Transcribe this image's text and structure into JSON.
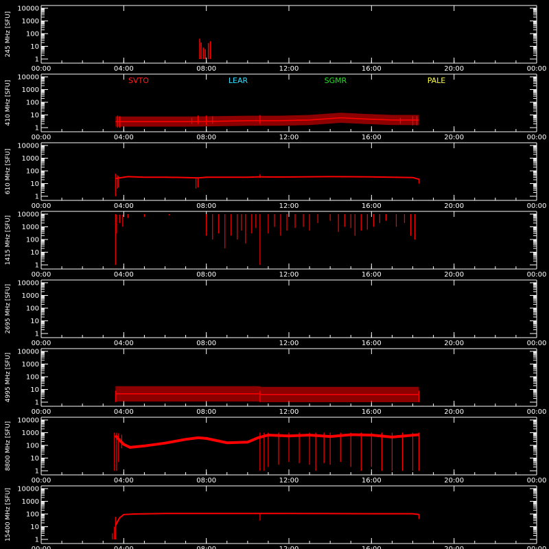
{
  "chart_data": {
    "type": "scatter",
    "x_ticks": [
      "00:00",
      "04:00",
      "08:00",
      "12:00",
      "16:00",
      "20:00",
      "00:00"
    ],
    "x_range_hours": [
      0,
      24
    ],
    "y_ticks": [
      "10000",
      "1000",
      "100",
      "10",
      "1"
    ],
    "y_scale": "log",
    "y_range": [
      1,
      10000
    ],
    "grid": false,
    "legend": [
      "SVTO",
      "LEAR",
      "SGMR",
      "PALE"
    ],
    "legend_colors": [
      "#ff2020",
      "#30e0ff",
      "#20e020",
      "#ffff40"
    ],
    "legend_panel": 1,
    "series_color": "#ff0000",
    "frame_color": "#ffffff",
    "background": "#000000",
    "panels": [
      {
        "ylabel": "245 MHz [SFU]",
        "features": [
          {
            "kind": "bursts",
            "x": [
              7.68,
              7.75,
              7.85,
              7.95,
              8.1,
              8.2
            ],
            "y": [
              40,
              20,
              8,
              6,
              18,
              25
            ],
            "floor": 1
          }
        ]
      },
      {
        "ylabel": "410 MHz [SFU]",
        "features": [
          {
            "kind": "band",
            "x": [
              3.6,
              4.5,
              6.0,
              7.3,
              8.5,
              10.0,
              11.5,
              13.0,
              14.5,
              15.5,
              17.0,
              18.3
            ],
            "y": [
              3,
              3,
              3,
              3,
              3.2,
              3.5,
              3.5,
              4,
              6,
              5,
              4,
              4
            ],
            "spread": 2.5
          },
          {
            "kind": "spikes",
            "x": [
              3.7,
              3.8,
              7.3,
              7.6,
              8.0,
              8.3,
              10.6,
              17.4,
              18.0,
              18.2
            ],
            "top": [
              9,
              8,
              6,
              9,
              9,
              8,
              10,
              6,
              8,
              8
            ],
            "bottom": [
              1,
              1,
              2,
              2,
              1.5,
              2,
              2,
              2,
              1.5,
              1.5
            ]
          }
        ]
      },
      {
        "ylabel": "610 MHz [SFU]",
        "features": [
          {
            "kind": "line",
            "x": [
              3.6,
              3.9,
              4.2,
              5.0,
              6.0,
              7.0,
              7.6,
              8.0,
              9.0,
              10.0,
              10.5,
              11.0,
              12.0,
              14.0,
              16.0,
              17.0,
              18.0,
              18.3
            ],
            "y": [
              25,
              30,
              35,
              32,
              32,
              30,
              28,
              32,
              32,
              32,
              34,
              33,
              33,
              35,
              34,
              32,
              30,
              22
            ]
          },
          {
            "kind": "spikes",
            "x": [
              3.6,
              3.7,
              3.75,
              7.5,
              7.6,
              10.6,
              18.3
            ],
            "top": [
              60,
              45,
              40,
              25,
              25,
              55,
              25
            ],
            "bottom": [
              1,
              4,
              5,
              4,
              5,
              28,
              10
            ]
          }
        ]
      },
      {
        "ylabel": "1415 MHz [SFU]",
        "features": [
          {
            "kind": "spikes",
            "x": [
              3.6,
              3.65,
              3.8,
              3.95,
              4.2,
              5.0,
              6.2,
              8.0,
              8.3,
              8.6,
              8.9,
              9.2,
              9.5,
              9.7,
              9.9,
              10.2,
              10.4,
              10.6,
              11.0,
              11.3,
              11.6,
              11.9,
              12.3,
              12.7,
              13.0,
              13.4,
              14.0,
              14.4,
              14.7,
              15.0,
              15.2,
              15.5,
              15.8,
              16.1,
              16.4,
              16.7,
              17.2,
              17.6,
              17.9,
              18.1
            ],
            "top": [
              10000,
              9000,
              9000,
              9000,
              10000,
              10000,
              10000,
              10000,
              10000,
              10000,
              10000,
              10000,
              10000,
              10000,
              10000,
              10000,
              10000,
              10000,
              10000,
              10000,
              10000,
              10000,
              10000,
              10000,
              10000,
              10000,
              10000,
              10000,
              10000,
              10000,
              10000,
              10000,
              10000,
              10000,
              10000,
              10000,
              10000,
              10000,
              10000,
              10000
            ],
            "bottom": [
              1,
              300,
              2000,
              1000,
              5000,
              6000,
              8000,
              200,
              100,
              300,
              20,
              200,
              100,
              500,
              50,
              300,
              800,
              1,
              300,
              1000,
              200,
              500,
              800,
              1000,
              500,
              2000,
              3000,
              400,
              1000,
              800,
              200,
              500,
              600,
              1000,
              2000,
              3000,
              1000,
              2000,
              200,
              100
            ]
          }
        ]
      },
      {
        "ylabel": "2695 MHz [SFU]",
        "features": []
      },
      {
        "ylabel": "4995 MHz [SFU]",
        "features": [
          {
            "kind": "band",
            "x": [
              3.6,
              10.6,
              10.65,
              18.3
            ],
            "y": [
              4.5,
              4.5,
              4,
              4
            ],
            "spread": 4
          },
          {
            "kind": "spikes",
            "x": [
              3.6,
              10.6,
              18.3
            ],
            "top": [
              8,
              8,
              8
            ],
            "bottom": [
              1,
              1,
              1
            ]
          }
        ]
      },
      {
        "ylabel": "8800 MHz [SFU]",
        "features": [
          {
            "kind": "line",
            "x": [
              3.6,
              3.8,
              4.0,
              4.3,
              5.0,
              6.0,
              7.0,
              7.6,
              8.0,
              9.0,
              10.0,
              10.5,
              11.0,
              12.0,
              13.0,
              14.0,
              15.0,
              16.0,
              17.0,
              18.3
            ],
            "y": [
              600,
              250,
              120,
              70,
              90,
              150,
              300,
              400,
              350,
              160,
              180,
              400,
              650,
              550,
              650,
              500,
              700,
              650,
              450,
              700
            ],
            "width": 4
          },
          {
            "kind": "spikes",
            "x": [
              3.55,
              3.65,
              3.75,
              3.9,
              10.6,
              10.8,
              11.0,
              11.5,
              12.0,
              12.5,
              13.0,
              13.3,
              13.7,
              14.0,
              14.5,
              15.0,
              15.5,
              16.0,
              16.5,
              17.0,
              17.5,
              18.0,
              18.3
            ],
            "top": [
              1000,
              1000,
              900,
              700,
              1000,
              1000,
              1000,
              1000,
              1000,
              1000,
              1000,
              1000,
              1000,
              1000,
              1000,
              1000,
              1000,
              1000,
              1000,
              1000,
              1000,
              1000,
              1000
            ],
            "bottom": [
              1,
              1,
              5,
              60,
              1,
              1,
              2,
              3,
              5,
              4,
              3,
              1,
              4,
              3,
              5,
              2,
              1,
              2,
              1,
              1,
              1,
              1,
              1
            ]
          }
        ]
      },
      {
        "ylabel": "15400 MHz [SFU]",
        "features": [
          {
            "kind": "line",
            "x": [
              3.6,
              3.7,
              3.8,
              4.0,
              4.5,
              6.0,
              8.0,
              10.0,
              10.6,
              12.0,
              14.0,
              16.0,
              18.0,
              18.3
            ],
            "y": [
              12,
              25,
              50,
              90,
              100,
              110,
              110,
              110,
              110,
              110,
              108,
              105,
              105,
              90
            ]
          },
          {
            "kind": "spikes",
            "x": [
              3.45,
              3.55,
              3.6,
              10.6,
              18.3
            ],
            "top": [
              3,
              10,
              60,
              120,
              100
            ],
            "bottom": [
              1,
              1,
              1,
              30,
              40
            ]
          }
        ]
      }
    ]
  }
}
